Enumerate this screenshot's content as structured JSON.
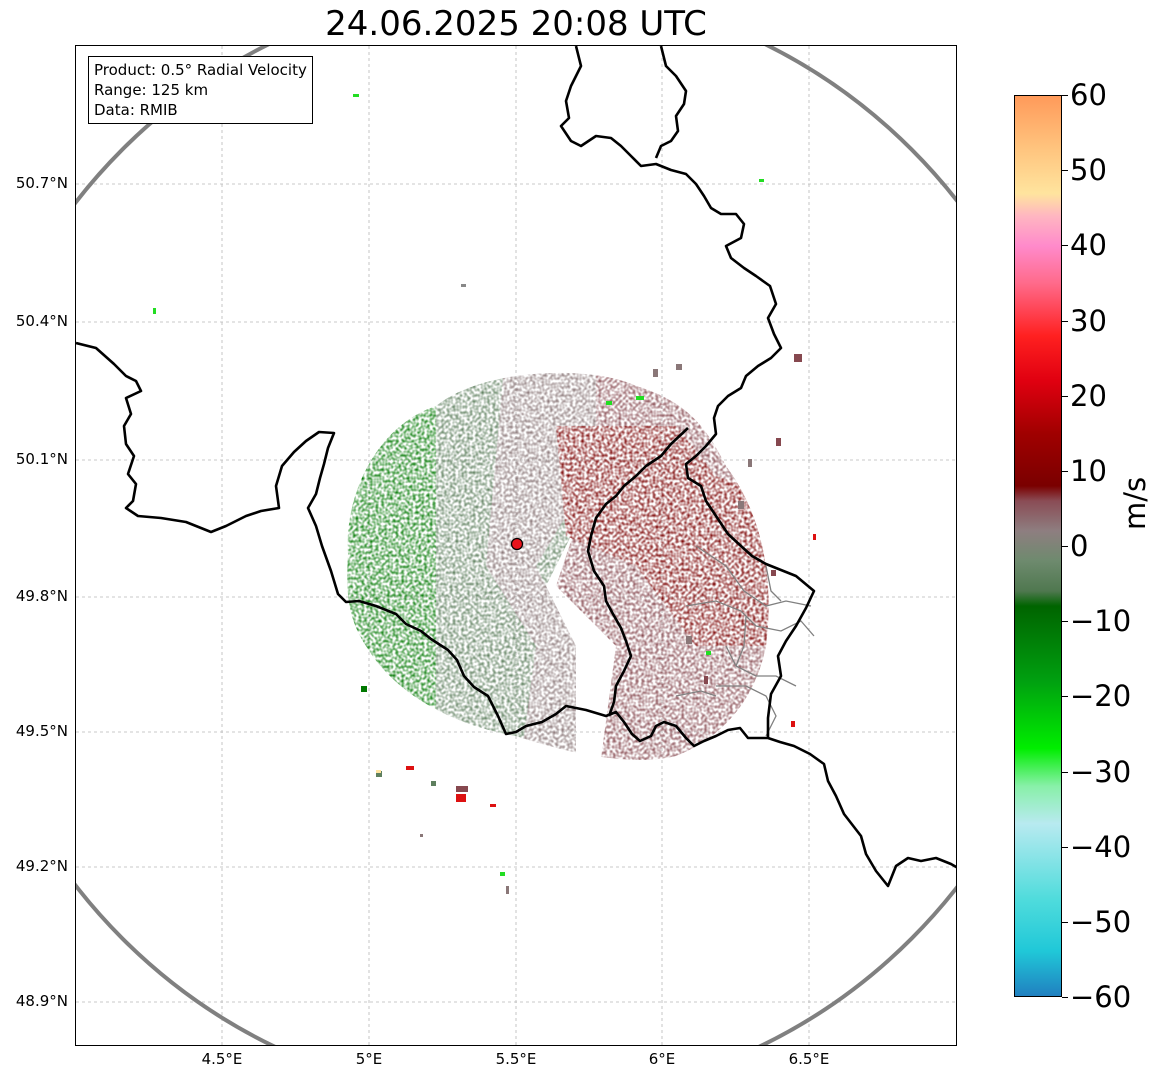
{
  "title": "24.06.2025 20:08 UTC",
  "info_box": {
    "product": "Product: 0.5° Radial Velocity",
    "range": "Range: 125 km",
    "data": "Data: RMIB"
  },
  "map": {
    "lon_ticks": [
      "4.5°E",
      "5°E",
      "5.5°E",
      "6°E",
      "6.5°E"
    ],
    "lat_ticks": [
      "50.7°N",
      "50.4°N",
      "50.1°N",
      "49.8°N",
      "49.5°N",
      "49.2°N",
      "48.9°N"
    ],
    "radar_site": {
      "lon": 5.505,
      "lat": 49.914,
      "marker_color": "#e8141c"
    },
    "range_ring_color": "#808080",
    "border_color": "#000000"
  },
  "colorbar": {
    "label": "m/s",
    "min": -60,
    "max": 60,
    "ticks": [
      "60",
      "50",
      "40",
      "30",
      "20",
      "10",
      "0",
      "−10",
      "−20",
      "−30",
      "−40",
      "−50",
      "−60"
    ],
    "stops": [
      {
        "v": 60,
        "c": "#ff9a5a"
      },
      {
        "v": 53,
        "c": "#ffc47e"
      },
      {
        "v": 47,
        "c": "#ffe49e"
      },
      {
        "v": 44,
        "c": "#ffb6c1"
      },
      {
        "v": 40,
        "c": "#ff8acb"
      },
      {
        "v": 35,
        "c": "#ff6a8a"
      },
      {
        "v": 28,
        "c": "#ff2020"
      },
      {
        "v": 22,
        "c": "#e00010"
      },
      {
        "v": 15,
        "c": "#a00000"
      },
      {
        "v": 8,
        "c": "#7a0000"
      },
      {
        "v": 6,
        "c": "#8a4c55"
      },
      {
        "v": 2,
        "c": "#8e7e80"
      },
      {
        "v": -2,
        "c": "#6e8a6e"
      },
      {
        "v": -6,
        "c": "#507850"
      },
      {
        "v": -8,
        "c": "#006400"
      },
      {
        "v": -18,
        "c": "#00a010"
      },
      {
        "v": -27,
        "c": "#00ee00"
      },
      {
        "v": -32,
        "c": "#88f0a8"
      },
      {
        "v": -37,
        "c": "#b8eaf0"
      },
      {
        "v": -47,
        "c": "#50dcdc"
      },
      {
        "v": -54,
        "c": "#20c8d8"
      },
      {
        "v": -60,
        "c": "#2080c0"
      }
    ]
  },
  "velocity_colors": {
    "strong_inbound": "#007800",
    "weak_inbound": "#5e7f5e",
    "near_zero": "#8a7778",
    "weak_outbound": "#86484f",
    "strong_outbound": "#7a0000",
    "speckle_green": "#22dd22",
    "speckle_red": "#dd1111"
  }
}
